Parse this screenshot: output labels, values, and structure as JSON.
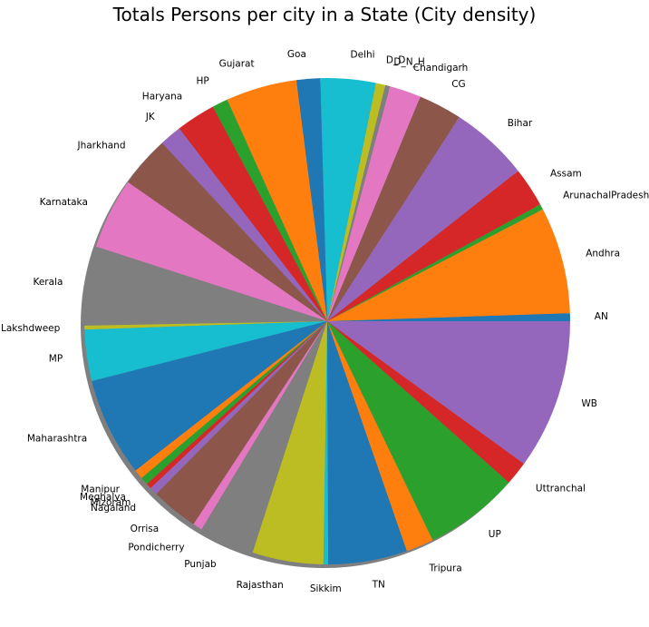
{
  "chart_data": {
    "type": "pie",
    "title": "Totals Persons per city in a State (City density)",
    "shadow": true,
    "start_angle_deg": 0,
    "direction": "counterclockwise",
    "slices": [
      {
        "label": "AN",
        "value": 1,
        "color": "#1f77b4"
      },
      {
        "label": "Andhra",
        "value": 13.5,
        "color": "#ff7f0e"
      },
      {
        "label": "ArunachalPradesh",
        "value": 0.7,
        "color": "#2ca02c"
      },
      {
        "label": "Assam",
        "value": 5,
        "color": "#d62728"
      },
      {
        "label": "Bihar",
        "value": 10,
        "color": "#9467bd"
      },
      {
        "label": "CG",
        "value": 5.5,
        "color": "#8c564b"
      },
      {
        "label": "Chandigarh",
        "value": 4,
        "color": "#e377c2"
      },
      {
        "label": "D_N_H",
        "value": 0.6,
        "color": "#7f7f7f"
      },
      {
        "label": "D_D",
        "value": 1.2,
        "color": "#bcbd22"
      },
      {
        "label": "Delhi",
        "value": 7,
        "color": "#17becf"
      },
      {
        "label": "Goa",
        "value": 3,
        "color": "#1f77b4"
      },
      {
        "label": "Gujarat",
        "value": 9,
        "color": "#ff7f0e"
      },
      {
        "label": "HP",
        "value": 2,
        "color": "#2ca02c"
      },
      {
        "label": "Haryana",
        "value": 5,
        "color": "#d62728"
      },
      {
        "label": "JK",
        "value": 2.8,
        "color": "#9467bd"
      },
      {
        "label": "Jharkhand",
        "value": 6.5,
        "color": "#8c564b"
      },
      {
        "label": "Karnataka",
        "value": 9,
        "color": "#e377c2"
      },
      {
        "label": "Kerala",
        "value": 10,
        "color": "#7f7f7f"
      },
      {
        "label": "Lakshdweep",
        "value": 0.5,
        "color": "#bcbd22"
      },
      {
        "label": "MP",
        "value": 6.5,
        "color": "#17becf"
      },
      {
        "label": "Maharashtra",
        "value": 12.5,
        "color": "#1f77b4"
      },
      {
        "label": "Manipur",
        "value": 1.2,
        "color": "#ff7f0e"
      },
      {
        "label": "Meghalya",
        "value": 1,
        "color": "#2ca02c"
      },
      {
        "label": "Mizoram",
        "value": 0.7,
        "color": "#d62728"
      },
      {
        "label": "Nagaland",
        "value": 1,
        "color": "#9467bd"
      },
      {
        "label": "Orrisa",
        "value": 6,
        "color": "#8c564b"
      },
      {
        "label": "Pondicherry",
        "value": 1.2,
        "color": "#e377c2"
      },
      {
        "label": "Punjab",
        "value": 7,
        "color": "#7f7f7f"
      },
      {
        "label": "Rajasthan",
        "value": 9,
        "color": "#bcbd22"
      },
      {
        "label": "Sikkim",
        "value": 0.6,
        "color": "#17becf"
      },
      {
        "label": "TN",
        "value": 10,
        "color": "#1f77b4"
      },
      {
        "label": "Tripura",
        "value": 3.5,
        "color": "#ff7f0e"
      },
      {
        "label": "UP",
        "value": 12,
        "color": "#2ca02c"
      },
      {
        "label": "Uttranchal",
        "value": 3,
        "color": "#d62728"
      },
      {
        "label": "WB",
        "value": 19,
        "color": "#9467bd"
      }
    ]
  }
}
